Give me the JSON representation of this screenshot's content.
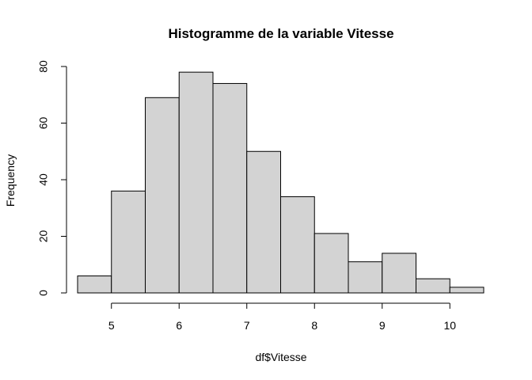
{
  "chart_data": {
    "type": "bar",
    "title": "Histogramme de la variable Vitesse",
    "xlabel": "df$Vitesse",
    "ylabel": "Frequency",
    "bins": [
      {
        "start": 4.5,
        "end": 5.0,
        "count": 6
      },
      {
        "start": 5.0,
        "end": 5.5,
        "count": 36
      },
      {
        "start": 5.5,
        "end": 6.0,
        "count": 69
      },
      {
        "start": 6.0,
        "end": 6.5,
        "count": 78
      },
      {
        "start": 6.5,
        "end": 7.0,
        "count": 74
      },
      {
        "start": 7.0,
        "end": 7.5,
        "count": 50
      },
      {
        "start": 7.5,
        "end": 8.0,
        "count": 34
      },
      {
        "start": 8.0,
        "end": 8.5,
        "count": 21
      },
      {
        "start": 8.5,
        "end": 9.0,
        "count": 11
      },
      {
        "start": 9.0,
        "end": 9.5,
        "count": 14
      },
      {
        "start": 9.5,
        "end": 10.0,
        "count": 5
      },
      {
        "start": 10.0,
        "end": 10.5,
        "count": 2
      }
    ],
    "x_ticks": [
      5,
      6,
      7,
      8,
      9,
      10
    ],
    "y_ticks": [
      0,
      20,
      40,
      60,
      80
    ],
    "xlim": [
      4.5,
      10.5
    ],
    "ylim": [
      0,
      80
    ],
    "grid": false,
    "bar_color": "#d3d3d3",
    "bar_border_color": "#000000"
  }
}
